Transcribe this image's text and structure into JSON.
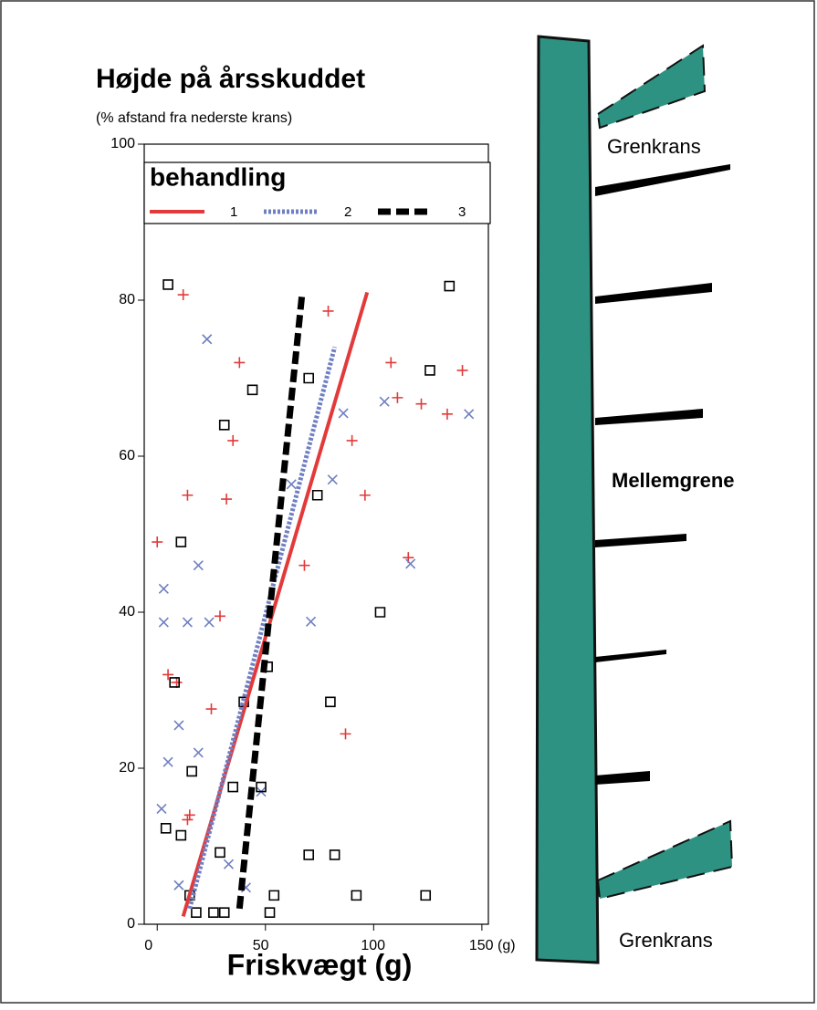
{
  "chart_data": {
    "type": "scatter",
    "title": "Højde på årsskuddet",
    "subtitle": "(% afstand fra nederste krans)",
    "x_label": "Friskvægt (g)",
    "legend_title": "behandling",
    "xlim": [
      -6,
      153
    ],
    "xticks": [
      0,
      50,
      100,
      {
        "value": 150,
        "label": "150 (g)"
      }
    ],
    "ylim": [
      0,
      100
    ],
    "yticks": [
      0,
      20,
      40,
      60,
      80,
      100
    ],
    "series": [
      {
        "name": "1",
        "color": "#e23a3a",
        "marker": "plus",
        "line_style": "solid",
        "x": [
          12,
          38,
          35,
          14,
          32,
          0,
          29,
          5,
          9,
          25,
          15,
          14,
          79,
          111,
          108,
          122,
          134,
          90,
          96,
          87,
          116,
          141,
          68
        ],
        "y": [
          80.7,
          72,
          62,
          55,
          54.5,
          49,
          39.5,
          32,
          31,
          27.6,
          14,
          13.4,
          78.6,
          67.5,
          72,
          66.7,
          65.4,
          62,
          55,
          24.4,
          47,
          71,
          46
        ],
        "fit": {
          "x": [
            12,
            97
          ],
          "y": [
            1,
            81
          ]
        }
      },
      {
        "name": "2",
        "color": "#6f7fc2",
        "marker": "x",
        "line_style": "dotted",
        "x": [
          23,
          3,
          3,
          14,
          24,
          19,
          71,
          86,
          105,
          144,
          81,
          62,
          117,
          10,
          5,
          19,
          2,
          48,
          33,
          41,
          10
        ],
        "y": [
          75,
          43,
          38.7,
          38.7,
          38.7,
          46,
          38.8,
          65.5,
          67,
          65.4,
          57,
          56.4,
          46.2,
          25.5,
          20.8,
          22,
          14.8,
          17,
          7.7,
          4.7,
          5
        ],
        "fit": {
          "x": [
            15,
            82
          ],
          "y": [
            2,
            74
          ]
        }
      },
      {
        "name": "3",
        "color": "#000000",
        "marker": "square",
        "line_style": "dashed",
        "x": [
          5,
          135,
          126,
          44,
          31,
          70,
          11,
          74,
          103,
          8,
          51,
          40,
          80,
          16,
          35,
          48,
          4,
          11,
          29,
          70,
          82,
          54,
          92,
          124,
          15,
          18,
          26,
          31,
          52
        ],
        "y": [
          82,
          81.8,
          71,
          68.5,
          64,
          70,
          49,
          55,
          40,
          31,
          33,
          28.5,
          28.5,
          19.6,
          17.6,
          17.6,
          12.3,
          11.4,
          9.2,
          8.9,
          8.9,
          3.7,
          3.7,
          3.7,
          3.7,
          1.5,
          1.5,
          1.5,
          1.5
        ],
        "fit": {
          "x": [
            38,
            67
          ],
          "y": [
            2,
            81
          ]
        }
      }
    ],
    "annotations": [
      "Grenkrans",
      "Mellemgrene",
      "Grenkrans"
    ]
  }
}
